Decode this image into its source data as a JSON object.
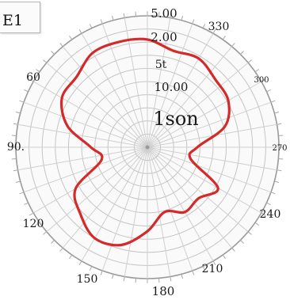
{
  "corner_tag": "E1",
  "chart_data": {
    "type": "polar-line",
    "annotation": "1son",
    "angle_labels": [
      "330",
      "300",
      "270",
      "240",
      "210",
      "180",
      "150",
      "120",
      "90.",
      "60"
    ],
    "radial_labels": [
      "5.00",
      "2.00",
      "5t",
      "10.00"
    ],
    "grid": true,
    "series": [
      {
        "color": "#d42a2a",
        "angles": [
          0,
          15,
          30,
          45,
          60,
          75,
          90,
          105,
          120,
          135,
          150,
          165,
          180,
          195,
          210,
          225,
          240,
          255,
          270,
          285,
          300,
          315,
          330,
          345
        ],
        "values": [
          0.82,
          0.83,
          0.83,
          0.76,
          0.75,
          0.63,
          0.43,
          0.36,
          0.63,
          0.72,
          0.8,
          0.77,
          0.64,
          0.51,
          0.57,
          0.55,
          0.62,
          0.34,
          0.38,
          0.61,
          0.71,
          0.73,
          0.78,
          0.76
        ]
      }
    ]
  }
}
